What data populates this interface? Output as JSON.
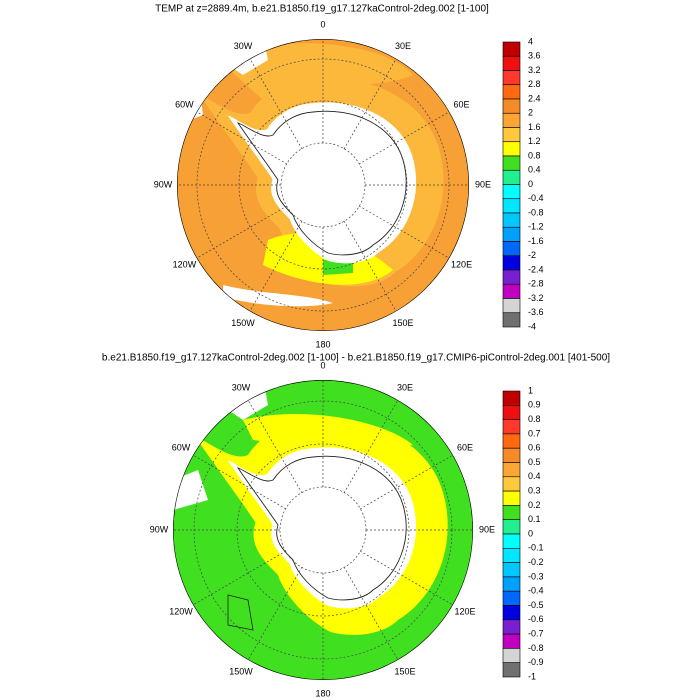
{
  "panels": [
    {
      "title": "TEMP at z=2889.4m, b.e21.B1850.f19_g17.127kaControl-2deg.002 [1-100]",
      "longitude_labels": [
        "0",
        "30E",
        "60E",
        "90E",
        "120E",
        "150E",
        "180",
        "150W",
        "120W",
        "90W",
        "60W",
        "30W"
      ],
      "colorbar": {
        "labels": [
          4,
          3.6,
          3.2,
          2.8,
          2.4,
          2,
          1.6,
          1.2,
          0.8,
          0.4,
          0,
          -0.4,
          -0.8,
          -1.2,
          -1.6,
          -2,
          -2.4,
          -2.8,
          -3.2,
          -3.6,
          -4
        ],
        "colors": [
          "#c00000",
          "#ee1010",
          "#ff3a2a",
          "#ff6a10",
          "#f58a28",
          "#fba535",
          "#ffc83c",
          "#ffff00",
          "#40e020",
          "#20f090",
          "#00ffff",
          "#00e6ff",
          "#00c8ff",
          "#00a0ff",
          "#0068ff",
          "#0000e0",
          "#7820d0",
          "#c000c0",
          "#d4d4d4",
          "#707070"
        ]
      }
    },
    {
      "title": "b.e21.B1850.f19_g17.127kaControl-2deg.002 [1-100] - b.e21.B1850.f19_g17.CMIP6-piControl-2deg.001 [401-500]",
      "longitude_labels": [
        "0",
        "30E",
        "60E",
        "90E",
        "120E",
        "150E",
        "180",
        "150W",
        "120W",
        "90W",
        "60W",
        "30W"
      ],
      "colorbar": {
        "labels": [
          1,
          0.9,
          0.8,
          0.7,
          0.6,
          0.5,
          0.4,
          0.3,
          0.2,
          0.1,
          0,
          -0.1,
          -0.2,
          -0.3,
          -0.4,
          -0.5,
          -0.6,
          -0.7,
          -0.8,
          -0.9,
          -1
        ],
        "colors": [
          "#c00000",
          "#ee1010",
          "#ff3a2a",
          "#ff6a10",
          "#f58a28",
          "#fba535",
          "#ffc83c",
          "#ffff00",
          "#40e020",
          "#20f090",
          "#00ffff",
          "#00e6ff",
          "#00c8ff",
          "#00a0ff",
          "#0068ff",
          "#0000e0",
          "#7820d0",
          "#c000c0",
          "#d4d4d4",
          "#707070"
        ]
      }
    }
  ]
}
